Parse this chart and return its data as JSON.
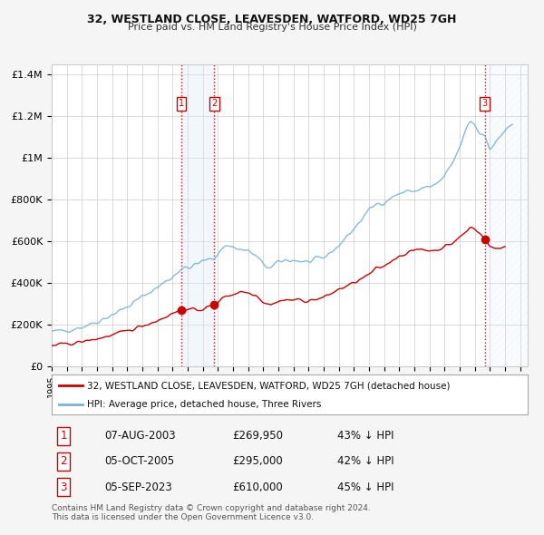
{
  "title": "32, WESTLAND CLOSE, LEAVESDEN, WATFORD, WD25 7GH",
  "subtitle": "Price paid vs. HM Land Registry's House Price Index (HPI)",
  "ylabel_ticks": [
    "£0",
    "£200K",
    "£400K",
    "£600K",
    "£800K",
    "£1M",
    "£1.2M",
    "£1.4M"
  ],
  "ytick_vals": [
    0,
    200000,
    400000,
    600000,
    800000,
    1000000,
    1200000,
    1400000
  ],
  "ylim": [
    0,
    1450000
  ],
  "xlim_start": 1995.0,
  "xlim_end": 2026.5,
  "sale_events": [
    {
      "label": "1",
      "date_num": 2003.58,
      "price": 269950,
      "text": "07-AUG-2003",
      "price_str": "£269,950",
      "pct": "43% ↓ HPI"
    },
    {
      "label": "2",
      "date_num": 2005.75,
      "price": 295000,
      "text": "05-OCT-2005",
      "price_str": "£295,000",
      "pct": "42% ↓ HPI"
    },
    {
      "label": "3",
      "date_num": 2023.67,
      "price": 610000,
      "text": "05-SEP-2023",
      "price_str": "£610,000",
      "pct": "45% ↓ HPI"
    }
  ],
  "legend_red": "32, WESTLAND CLOSE, LEAVESDEN, WATFORD, WD25 7GH (detached house)",
  "legend_blue": "HPI: Average price, detached house, Three Rivers",
  "footnote": "Contains HM Land Registry data © Crown copyright and database right 2024.\nThis data is licensed under the Open Government Licence v3.0.",
  "background_color": "#f5f5f5",
  "plot_bg_color": "#ffffff",
  "blue_color": "#7ab3d4",
  "red_color": "#cc0000",
  "shade_color": "#daeaf7",
  "grid_color": "#cccccc",
  "hatch_color": "#cccccc"
}
